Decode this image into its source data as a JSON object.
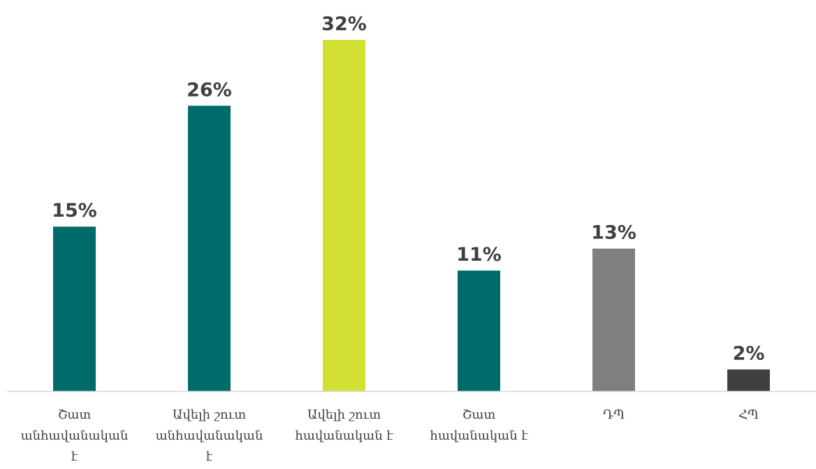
{
  "chart_data": {
    "type": "bar",
    "categories": [
      "Շատ անհավանական է",
      "Ավելի շուտ անհավանական է",
      "Ավելի շուտ հավանական է",
      "Շատ հավանական է",
      "ԴՊ",
      "ՀՊ"
    ],
    "category_lines": [
      [
        "Շատ",
        "անհավանական",
        "է"
      ],
      [
        "Ավելի շուտ",
        "անհավանական",
        "է"
      ],
      [
        "Ավելի շուտ",
        "հավանական է"
      ],
      [
        "Շատ",
        "հավանական է"
      ],
      [
        "ԴՊ"
      ],
      [
        "ՀՊ"
      ]
    ],
    "values": [
      15,
      26,
      32,
      11,
      13,
      2
    ],
    "value_labels": [
      "15%",
      "26%",
      "32%",
      "11%",
      "13%",
      "2%"
    ],
    "colors": [
      "#006b6b",
      "#006b6b",
      "#d4df33",
      "#006b6b",
      "#7f7f7f",
      "#404040"
    ],
    "unit": "%",
    "ylim": [
      0,
      32
    ],
    "grid": false,
    "legend": "none"
  }
}
